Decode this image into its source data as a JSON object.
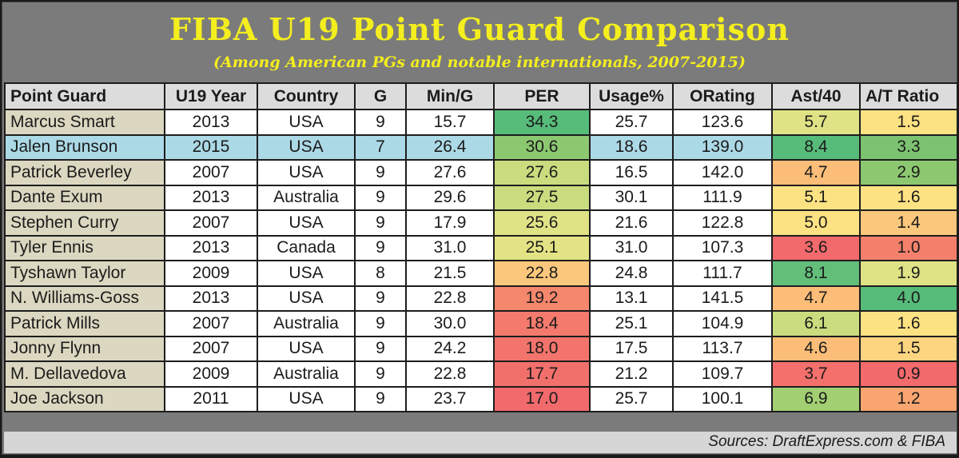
{
  "title": "FIBA U19 Point Guard Comparison",
  "subtitle": "(Among American PGs and notable internationals, 2007-2015)",
  "source": "Sources: DraftExpress.com & FIBA",
  "colors": {
    "title": "#f4ee1e",
    "background": "#7b7b7b",
    "header_cell": "#dcdcdc",
    "name_cell": "#dcd7c0",
    "highlight_row": "#acd9e6",
    "scale": {
      "dark_green": "#57bb7a",
      "green": "#8cc870",
      "yellow_green": "#c9dc7e",
      "pale_yellow_green": "#dfe285",
      "yellow": "#fde283",
      "light_orange": "#fbc77c",
      "orange": "#f8a570",
      "salmon": "#f4876c",
      "red": "#f26a6c"
    }
  },
  "chart_data": {
    "type": "table",
    "title": "FIBA U19 Point Guard Comparison",
    "subtitle": "(Among American PGs and notable internationals, 2007-2015)",
    "columns": [
      "Point Guard",
      "U19 Year",
      "Country",
      "G",
      "Min/G",
      "PER",
      "Usage%",
      "ORating",
      "Ast/40",
      "A/T Ratio"
    ],
    "rows": [
      {
        "name": "Marcus Smart",
        "year": "2013",
        "country": "USA",
        "g": "9",
        "min": "15.7",
        "per": "34.3",
        "usage": "25.7",
        "ortg": "123.6",
        "ast40": "5.7",
        "at": "1.5",
        "highlight": false,
        "per_color": "#57bb7a",
        "ast_color": "#dfe285",
        "at_color": "#fde283"
      },
      {
        "name": "Jalen Brunson",
        "year": "2015",
        "country": "USA",
        "g": "7",
        "min": "26.4",
        "per": "30.6",
        "usage": "18.6",
        "ortg": "139.0",
        "ast40": "8.4",
        "at": "3.3",
        "highlight": true,
        "per_color": "#8cc870",
        "ast_color": "#57bb7a",
        "at_color": "#7cc371"
      },
      {
        "name": "Patrick Beverley",
        "year": "2007",
        "country": "USA",
        "g": "9",
        "min": "27.6",
        "per": "27.6",
        "usage": "16.5",
        "ortg": "142.0",
        "ast40": "4.7",
        "at": "2.9",
        "highlight": false,
        "per_color": "#c9dc7e",
        "ast_color": "#fbbd78",
        "at_color": "#8cc870"
      },
      {
        "name": "Dante Exum",
        "year": "2013",
        "country": "Australia",
        "g": "9",
        "min": "29.6",
        "per": "27.5",
        "usage": "30.1",
        "ortg": "111.9",
        "ast40": "5.1",
        "at": "1.6",
        "highlight": false,
        "per_color": "#c9dc7e",
        "ast_color": "#fde283",
        "at_color": "#fde283"
      },
      {
        "name": "Stephen Curry",
        "year": "2007",
        "country": "USA",
        "g": "9",
        "min": "17.9",
        "per": "25.6",
        "usage": "21.6",
        "ortg": "122.8",
        "ast40": "5.0",
        "at": "1.4",
        "highlight": false,
        "per_color": "#dfe285",
        "ast_color": "#fde283",
        "at_color": "#fbc77c"
      },
      {
        "name": "Tyler Ennis",
        "year": "2013",
        "country": "Canada",
        "g": "9",
        "min": "31.0",
        "per": "25.1",
        "usage": "31.0",
        "ortg": "107.3",
        "ast40": "3.6",
        "at": "1.0",
        "highlight": false,
        "per_color": "#e3e385",
        "ast_color": "#f26a6c",
        "at_color": "#f4806c"
      },
      {
        "name": "Tyshawn Taylor",
        "year": "2009",
        "country": "USA",
        "g": "8",
        "min": "21.5",
        "per": "22.8",
        "usage": "24.8",
        "ortg": "111.7",
        "ast40": "8.1",
        "at": "1.9",
        "highlight": false,
        "per_color": "#fbc77c",
        "ast_color": "#63be7a",
        "at_color": "#dfe285"
      },
      {
        "name": "N. Williams-Goss",
        "year": "2013",
        "country": "USA",
        "g": "9",
        "min": "22.8",
        "per": "19.2",
        "usage": "13.1",
        "ortg": "141.5",
        "ast40": "4.7",
        "at": "4.0",
        "highlight": false,
        "per_color": "#f4876c",
        "ast_color": "#fbbd78",
        "at_color": "#57bb7a"
      },
      {
        "name": "Patrick Mills",
        "year": "2007",
        "country": "Australia",
        "g": "9",
        "min": "30.0",
        "per": "18.4",
        "usage": "25.1",
        "ortg": "104.9",
        "ast40": "6.1",
        "at": "1.6",
        "highlight": false,
        "per_color": "#f37a6c",
        "ast_color": "#c9dc7e",
        "at_color": "#fde283"
      },
      {
        "name": "Jonny Flynn",
        "year": "2007",
        "country": "USA",
        "g": "9",
        "min": "24.2",
        "per": "18.0",
        "usage": "17.5",
        "ortg": "113.7",
        "ast40": "4.6",
        "at": "1.5",
        "highlight": false,
        "per_color": "#f3746c",
        "ast_color": "#fbbd78",
        "at_color": "#fdd581"
      },
      {
        "name": "M. Dellavedova",
        "year": "2009",
        "country": "Australia",
        "g": "9",
        "min": "22.8",
        "per": "17.7",
        "usage": "21.2",
        "ortg": "109.7",
        "ast40": "3.7",
        "at": "0.9",
        "highlight": false,
        "per_color": "#f2706c",
        "ast_color": "#f3706c",
        "at_color": "#f26a6c"
      },
      {
        "name": "Joe Jackson",
        "year": "2011",
        "country": "USA",
        "g": "9",
        "min": "23.7",
        "per": "17.0",
        "usage": "25.7",
        "ortg": "100.1",
        "ast40": "6.9",
        "at": "1.2",
        "highlight": false,
        "per_color": "#f26a6c",
        "ast_color": "#a2cf72",
        "at_color": "#f8a570"
      }
    ],
    "conditional_formatting": [
      "PER",
      "Ast/40",
      "A/T Ratio"
    ],
    "highlighted_row": "Jalen Brunson"
  }
}
